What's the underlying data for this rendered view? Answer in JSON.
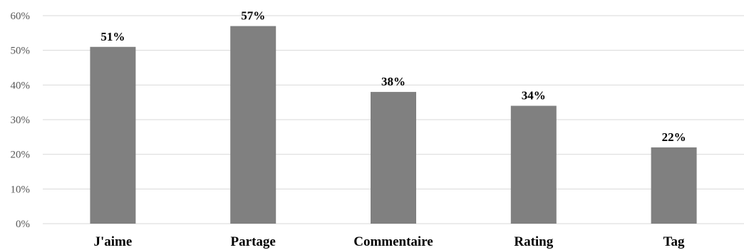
{
  "chart_data": {
    "type": "bar",
    "categories": [
      "J'aime",
      "Partage",
      "Commentaire",
      "Rating",
      "Tag"
    ],
    "values": [
      51,
      57,
      38,
      34,
      22
    ],
    "data_labels": [
      "51%",
      "57%",
      "38%",
      "34%",
      "22%"
    ],
    "y_ticks": [
      "0%",
      "10%",
      "20%",
      "30%",
      "40%",
      "50%",
      "60%"
    ],
    "ylim": [
      0,
      60
    ],
    "grid": true,
    "legend": false,
    "bar_color": "#808080",
    "grid_color": "#d9d9d9"
  }
}
